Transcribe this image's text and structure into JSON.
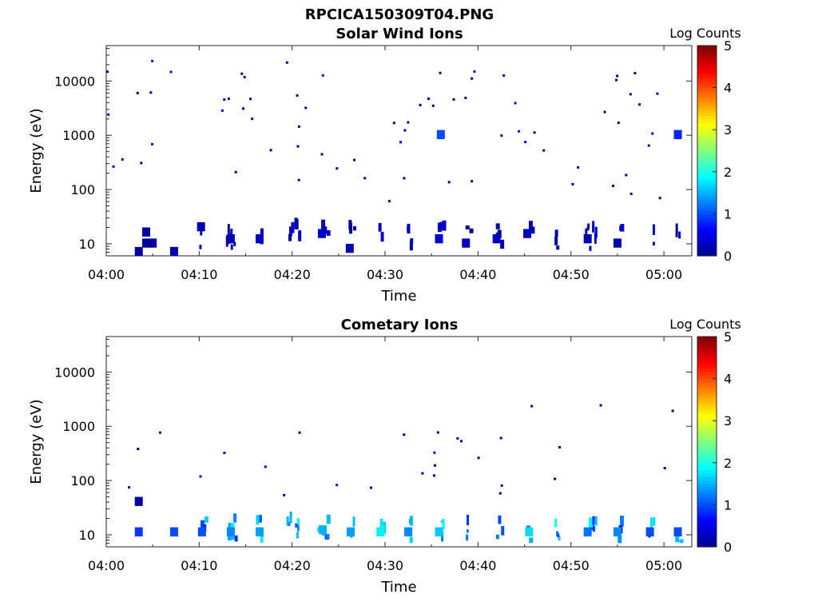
{
  "figure": {
    "title": "RPCICA150309T04.PNG"
  },
  "colormap": {
    "label": "Log Counts",
    "range": [
      0,
      5
    ],
    "ticks": [
      "0",
      "1",
      "2",
      "3",
      "4",
      "5"
    ],
    "stops": [
      "#00008f",
      "#0000ff",
      "#007fff",
      "#00ffff",
      "#7fff7f",
      "#ffff00",
      "#ff7f00",
      "#ff0000",
      "#800000"
    ]
  },
  "chart_data": [
    {
      "type": "heatmap",
      "title": "Solar Wind Ions",
      "xlabel": "Time",
      "ylabel": "Energy (eV)",
      "x_ticks": [
        "04:00",
        "04:10",
        "04:20",
        "04:30",
        "04:40",
        "04:50",
        "05:00"
      ],
      "xlim_minutes_after_0400": [
        0,
        63
      ],
      "y_scale": "log",
      "ylim_ev": [
        6,
        45000
      ],
      "y_ticks": [
        "10",
        "100",
        "1000",
        "10000"
      ],
      "color_scale": "Log Counts",
      "cells": [
        {
          "t": 3.5,
          "e": 7,
          "v": 0.1
        },
        {
          "t": 4.3,
          "e": 10,
          "v": 0.1
        },
        {
          "t": 4.3,
          "e": 16,
          "v": 0.1
        },
        {
          "t": 5.0,
          "e": 10,
          "v": 0.1
        },
        {
          "t": 7.3,
          "e": 7,
          "v": 0.1
        },
        {
          "t": 10.2,
          "e": 20,
          "v": 0.2
        },
        {
          "t": 13.4,
          "e": 12,
          "v": 0.2
        },
        {
          "t": 16.5,
          "e": 12,
          "v": 0.3
        },
        {
          "t": 23.2,
          "e": 15,
          "v": 0.3
        },
        {
          "t": 26.2,
          "e": 8,
          "v": 0.2
        },
        {
          "t": 35.8,
          "e": 12,
          "v": 0.4
        },
        {
          "t": 38.7,
          "e": 10,
          "v": 0.3
        },
        {
          "t": 42.0,
          "e": 12,
          "v": 0.3
        },
        {
          "t": 45.3,
          "e": 15,
          "v": 0.3
        },
        {
          "t": 51.8,
          "e": 12,
          "v": 0.2
        },
        {
          "t": 55.0,
          "e": 10,
          "v": 0.2
        },
        {
          "t": 61.5,
          "e": 1000,
          "v": 0.8
        },
        {
          "t": 36.0,
          "e": 1000,
          "v": 1.0
        }
      ]
    },
    {
      "type": "heatmap",
      "title": "Cometary Ions",
      "xlabel": "Time",
      "ylabel": "Energy (eV)",
      "x_ticks": [
        "04:00",
        "04:10",
        "04:20",
        "04:30",
        "04:40",
        "04:50",
        "05:00"
      ],
      "xlim_minutes_after_0400": [
        0,
        63
      ],
      "y_scale": "log",
      "ylim_ev": [
        6,
        45000
      ],
      "y_ticks": [
        "10",
        "100",
        "1000",
        "10000"
      ],
      "color_scale": "Log Counts",
      "cells": [
        {
          "t": 3.5,
          "e": 11,
          "v": 0.9
        },
        {
          "t": 3.5,
          "e": 40,
          "v": 0.1
        },
        {
          "t": 7.3,
          "e": 11,
          "v": 1.0
        },
        {
          "t": 10.3,
          "e": 11,
          "v": 1.0
        },
        {
          "t": 13.4,
          "e": 11,
          "v": 1.3
        },
        {
          "t": 16.5,
          "e": 11,
          "v": 1.4
        },
        {
          "t": 23.3,
          "e": 12,
          "v": 1.5
        },
        {
          "t": 26.3,
          "e": 11,
          "v": 1.4
        },
        {
          "t": 29.5,
          "e": 11,
          "v": 1.8
        },
        {
          "t": 32.5,
          "e": 11,
          "v": 1.3
        },
        {
          "t": 35.8,
          "e": 11,
          "v": 1.6
        },
        {
          "t": 45.5,
          "e": 11,
          "v": 1.7
        },
        {
          "t": 51.8,
          "e": 11,
          "v": 1.2
        },
        {
          "t": 55.0,
          "e": 11,
          "v": 1.3
        },
        {
          "t": 58.5,
          "e": 11,
          "v": 1.0
        },
        {
          "t": 61.5,
          "e": 11,
          "v": 1.0
        }
      ]
    }
  ]
}
